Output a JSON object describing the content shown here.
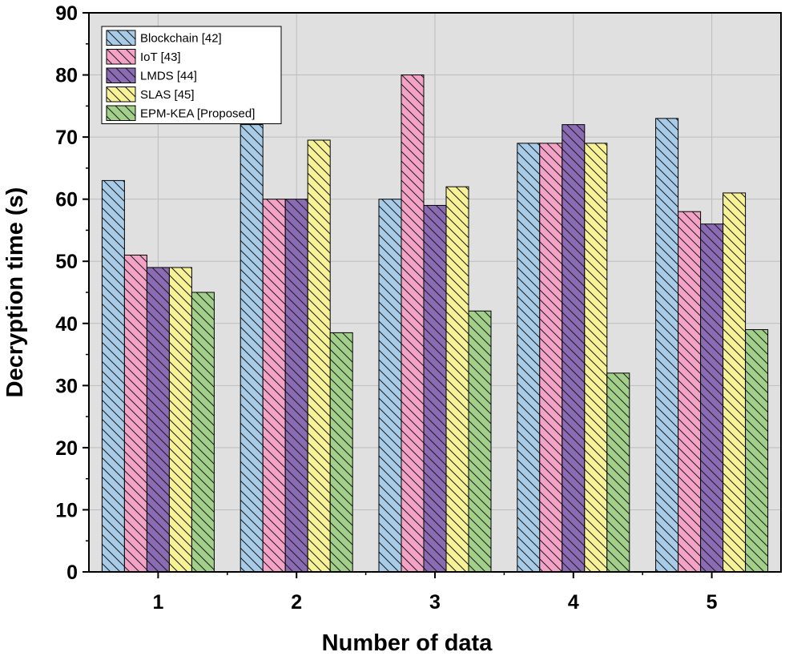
{
  "chart_data": {
    "type": "bar",
    "title": "",
    "xlabel": "Number of data",
    "ylabel": "Decryption time (s)",
    "ylim": [
      0,
      90
    ],
    "yticks": [
      0,
      10,
      20,
      30,
      40,
      50,
      60,
      70,
      80,
      90
    ],
    "categories": [
      "1",
      "2",
      "3",
      "4",
      "5"
    ],
    "grid": true,
    "legend_position": "top-left",
    "series": [
      {
        "name": "Blockchain [42]",
        "color": "#a8cbe8",
        "values": [
          63,
          72,
          60,
          69,
          73
        ]
      },
      {
        "name": "IoT [43]",
        "color": "#f4a3c7",
        "values": [
          51,
          60,
          80,
          69,
          58
        ]
      },
      {
        "name": "LMDS [44]",
        "color": "#8b6bb3",
        "values": [
          49,
          60,
          59,
          72,
          56
        ]
      },
      {
        "name": "SLAS [45]",
        "color": "#f8f297",
        "values": [
          49,
          69.5,
          62,
          69,
          61
        ]
      },
      {
        "name": "EPM-KEA [Proposed]",
        "color": "#a2d08a",
        "values": [
          45,
          38.5,
          42,
          32,
          39
        ]
      }
    ]
  }
}
